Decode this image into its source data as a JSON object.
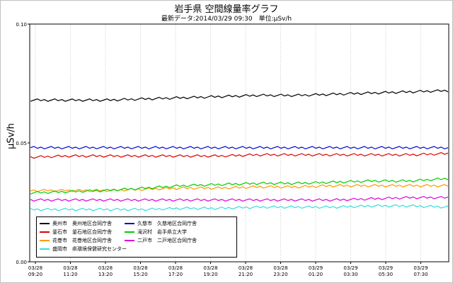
{
  "chart_data": {
    "type": "line",
    "title": "岩手県 空間線量率グラフ",
    "subtitle": "最新データ:2014/03/29 09:30　単位:μSv/h",
    "ylabel": "μSv/h",
    "ylim": [
      0,
      0.1
    ],
    "yticks": [
      "0.00",
      "0.05",
      "0.10"
    ],
    "xticks": [
      {
        "date": "03/28",
        "time": "09:20"
      },
      {
        "date": "03/28",
        "time": "11:20"
      },
      {
        "date": "03/28",
        "time": "13:20"
      },
      {
        "date": "03/28",
        "time": "15:20"
      },
      {
        "date": "03/28",
        "time": "17:20"
      },
      {
        "date": "03/28",
        "time": "19:20"
      },
      {
        "date": "03/28",
        "time": "21:20"
      },
      {
        "date": "03/28",
        "time": "23:20"
      },
      {
        "date": "03/29",
        "time": "01:20"
      },
      {
        "date": "03/29",
        "time": "03:30"
      },
      {
        "date": "03/29",
        "time": "05:30"
      },
      {
        "date": "03/29",
        "time": "07:30"
      }
    ],
    "grid": "vertical",
    "legend_position": "bottom-left",
    "series": [
      {
        "name": "奥州市　奥州地区合同庁舎",
        "color": "#000000",
        "values": [
          0.068,
          0.068,
          0.068,
          0.0685,
          0.069,
          0.0695,
          0.07,
          0.07,
          0.0705,
          0.071,
          0.0715,
          0.072
        ]
      },
      {
        "name": "釜石市　釜石地区合同庁舎",
        "color": "#dd0000",
        "values": [
          0.044,
          0.0445,
          0.0445,
          0.0445,
          0.0445,
          0.0445,
          0.045,
          0.045,
          0.045,
          0.045,
          0.045,
          0.0455
        ]
      },
      {
        "name": "花巻市　花巻地区合同庁舎",
        "color": "#ff9900",
        "values": [
          0.03,
          0.03,
          0.03,
          0.0305,
          0.031,
          0.031,
          0.0315,
          0.0315,
          0.032,
          0.032,
          0.032,
          0.032
        ]
      },
      {
        "name": "盛岡市　県環境保健研究センター",
        "color": "#33dddd",
        "values": [
          0.022,
          0.022,
          0.022,
          0.022,
          0.0225,
          0.0225,
          0.023,
          0.023,
          0.023,
          0.0235,
          0.0235,
          0.023
        ]
      },
      {
        "name": "久慈市　久慈地区合同庁舎",
        "color": "#0000cc",
        "values": [
          0.048,
          0.048,
          0.048,
          0.048,
          0.048,
          0.048,
          0.048,
          0.048,
          0.048,
          0.048,
          0.048,
          0.048
        ]
      },
      {
        "name": "滝沢村　岩手県立大学",
        "color": "#00cc00",
        "values": [
          0.029,
          0.0295,
          0.03,
          0.031,
          0.032,
          0.0325,
          0.033,
          0.033,
          0.0335,
          0.034,
          0.034,
          0.035
        ]
      },
      {
        "name": "二戸市　二戸地区合同庁舎",
        "color": "#dd00dd",
        "values": [
          0.026,
          0.026,
          0.026,
          0.026,
          0.026,
          0.026,
          0.026,
          0.026,
          0.026,
          0.0265,
          0.027,
          0.027
        ]
      }
    ]
  }
}
